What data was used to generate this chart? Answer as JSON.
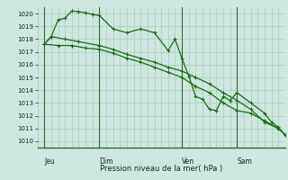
{
  "background_color": "#cce8e0",
  "grid_color": "#aaccbb",
  "line_color": "#1a6b1a",
  "marker_color": "#1a6b1a",
  "title": "Pression niveau de la mer( hPa )",
  "ylim": [
    1009.5,
    1020.5
  ],
  "yticks": [
    1010,
    1011,
    1012,
    1013,
    1014,
    1015,
    1016,
    1017,
    1018,
    1019,
    1020
  ],
  "xlim": [
    0,
    36
  ],
  "day_labels": [
    "Jeu",
    "Dim",
    "Ven",
    "Sam"
  ],
  "day_positions": [
    1,
    9,
    21,
    29
  ],
  "series1": [
    [
      1,
      1017.6
    ],
    [
      2,
      1018.2
    ],
    [
      4,
      1018.0
    ],
    [
      6,
      1017.8
    ],
    [
      9,
      1017.5
    ],
    [
      11,
      1017.2
    ],
    [
      13,
      1016.8
    ],
    [
      15,
      1016.5
    ],
    [
      17,
      1016.2
    ],
    [
      19,
      1015.8
    ],
    [
      21,
      1015.5
    ],
    [
      23,
      1015.0
    ],
    [
      25,
      1014.5
    ],
    [
      27,
      1013.8
    ],
    [
      29,
      1013.2
    ],
    [
      31,
      1012.5
    ],
    [
      33,
      1011.5
    ],
    [
      35,
      1011.0
    ]
  ],
  "series2": [
    [
      1,
      1017.6
    ],
    [
      2,
      1018.2
    ],
    [
      3,
      1019.5
    ],
    [
      4,
      1019.65
    ],
    [
      5,
      1020.2
    ],
    [
      6,
      1020.15
    ],
    [
      7,
      1020.05
    ],
    [
      8,
      1019.95
    ],
    [
      9,
      1019.85
    ],
    [
      11,
      1018.8
    ],
    [
      13,
      1018.5
    ],
    [
      15,
      1018.8
    ],
    [
      17,
      1018.5
    ],
    [
      19,
      1017.1
    ],
    [
      20,
      1018.0
    ],
    [
      21,
      1016.5
    ],
    [
      22,
      1015.1
    ],
    [
      23,
      1013.5
    ],
    [
      24,
      1013.3
    ],
    [
      25,
      1012.5
    ],
    [
      26,
      1012.4
    ],
    [
      27,
      1013.5
    ],
    [
      28,
      1013.2
    ],
    [
      29,
      1013.8
    ],
    [
      31,
      1013.0
    ],
    [
      33,
      1012.2
    ],
    [
      34,
      1011.5
    ],
    [
      35,
      1011.1
    ],
    [
      36,
      1010.5
    ]
  ],
  "series3": [
    [
      1,
      1017.6
    ],
    [
      3,
      1017.5
    ],
    [
      5,
      1017.5
    ],
    [
      7,
      1017.3
    ],
    [
      9,
      1017.2
    ],
    [
      11,
      1016.9
    ],
    [
      13,
      1016.5
    ],
    [
      15,
      1016.2
    ],
    [
      17,
      1015.8
    ],
    [
      19,
      1015.4
    ],
    [
      21,
      1015.0
    ],
    [
      23,
      1014.3
    ],
    [
      25,
      1013.8
    ],
    [
      27,
      1013.0
    ],
    [
      29,
      1012.4
    ],
    [
      31,
      1012.2
    ],
    [
      33,
      1011.6
    ],
    [
      35,
      1011.0
    ],
    [
      36,
      1010.5
    ]
  ]
}
